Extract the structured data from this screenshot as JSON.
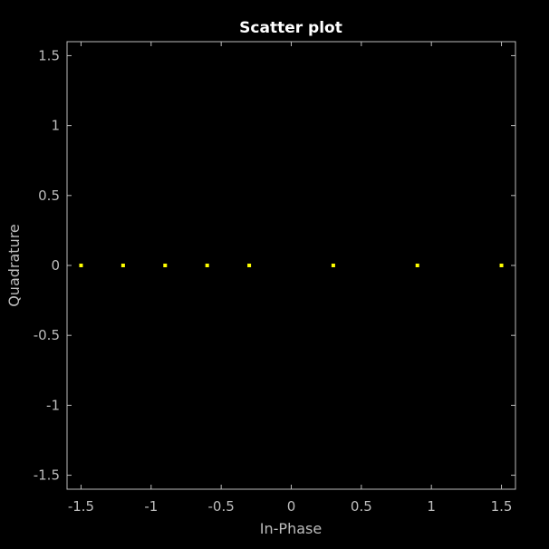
{
  "chart_data": {
    "type": "scatter",
    "title": "Scatter plot",
    "xlabel": "In-Phase",
    "ylabel": "Quadrature",
    "xlim": [
      -1.6,
      1.6
    ],
    "ylim": [
      -1.6,
      1.6
    ],
    "xticks": [
      -1.5,
      -1,
      -0.5,
      0,
      0.5,
      1,
      1.5
    ],
    "yticks": [
      -1.5,
      -1,
      -0.5,
      0,
      0.5,
      1,
      1.5
    ],
    "xtick_labels": [
      "-1.5",
      "-1",
      "-0.5",
      "0",
      "0.5",
      "1",
      "1.5"
    ],
    "ytick_labels": [
      "-1.5",
      "-1",
      "-0.5",
      "0",
      "0.5",
      "1",
      "1.5"
    ],
    "grid": false,
    "series": [
      {
        "x": [
          -1.5,
          -1.2,
          -0.9,
          -0.6,
          -0.3,
          0.3,
          0.9,
          1.5
        ],
        "y": [
          0,
          0,
          0,
          0,
          0,
          0,
          0,
          0
        ],
        "color": "#ffff00"
      }
    ],
    "colors": {
      "background": "#000000",
      "axes": "#bdbdbd",
      "title": "#ffffff"
    }
  }
}
